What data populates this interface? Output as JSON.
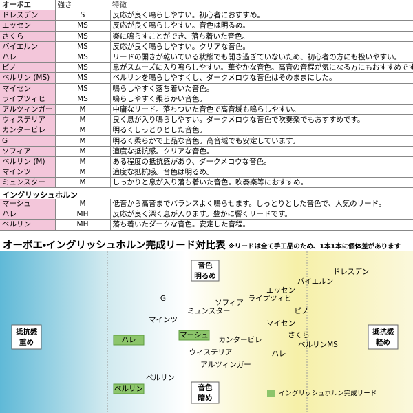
{
  "oboe_table": {
    "header": [
      "オーボエ",
      "強さ",
      "特徴"
    ],
    "rows": [
      [
        "ドレスデン",
        "S",
        "反応が良く鳴らしやすい。初心者におすすめ。"
      ],
      [
        "エッセン",
        "MS",
        "反応が良く鳴らしやすい。音色は明るめ。"
      ],
      [
        "さくら",
        "MS",
        "楽に鳴らすことができ、落ち着いた音色。"
      ],
      [
        "バイエルン",
        "MS",
        "反応が良く鳴らしやすい。クリアな音色。"
      ],
      [
        "ハレ",
        "MS",
        "リードの開きが乾いている状態でも開き過ぎていないため、初心者の方にも扱いやすい。"
      ],
      [
        "ピノ",
        "MS",
        "息がスムーズに入り鳴らしやすい。華やかな音色。高音の音程が気になる方にもおすすめです。"
      ],
      [
        "ベルリン (MS)",
        "MS",
        "ベルリンを鳴らしやすくし、ダークメロウな音色はそのままにした。"
      ],
      [
        "マイセン",
        "MS",
        "鳴らしやすく落ち着いた音色。"
      ],
      [
        "ライプツィヒ",
        "MS",
        "鳴らしやすく柔らかい音色。"
      ],
      [
        "アルツィンガー",
        "M",
        "中庸なリード。落ちついた音色で高音域も鳴らしやすい。"
      ],
      [
        "ウィステリア",
        "M",
        "良く息が入り鳴らしやすい。ダークメロウな音色で吹奏楽でもおすすめです。"
      ],
      [
        "カンタービレ",
        "M",
        "明るくしっとりとした音色。"
      ],
      [
        "G",
        "M",
        "明るく柔らかで上品な音色。高音域でも安定しています。"
      ],
      [
        "ソフィア",
        "M",
        "適度な抵抗感。クリアな音色。"
      ],
      [
        "ベルリン (M)",
        "M",
        "ある程度の抵抗感があり、ダークメロウな音色。"
      ],
      [
        "マインツ",
        "M",
        "適度な抵抗感。音色は明るめ。"
      ],
      [
        "ミュンスター",
        "M",
        "しっかりと息が入り落ち着いた音色。吹奏楽等におすすめ。"
      ]
    ]
  },
  "english_horn_table": {
    "title": "イングリッシュホルン",
    "rows": [
      [
        "マーシュ",
        "M",
        "低音から高音までバランスよく鳴らせます。しっとりとした音色で、人気のリード。"
      ],
      [
        "ハレ",
        "MH",
        "反応が良く深く息が入ります。豊かに響くリードです。"
      ],
      [
        "ベルリン",
        "MH",
        "落ち着いたダークな音色。安定した音程。"
      ]
    ]
  },
  "comparison": {
    "title": "オーボエ・イングリッシュホルン完成リード対比表",
    "note": "※リードは全て手工品のため、1本1本に個体差があります",
    "axis_labels": {
      "top": [
        "音色",
        "明るめ"
      ],
      "bottom": [
        "音色",
        "暗め"
      ],
      "left": [
        "抵抗感",
        "重め"
      ],
      "right": [
        "抵抗感",
        "軽め"
      ]
    },
    "oboe_points": [
      "ドレスデン",
      "バイエルン",
      "エッセン",
      "ライプツィヒ",
      "ソフィア",
      "G",
      "ミュンスター",
      "ピノ",
      "マインツ",
      "マイセン",
      "さくら",
      "カンタービレ",
      "ベルリンMS",
      "ウィステリア",
      "ハレ",
      "アルツィンガー",
      "ベルリン"
    ],
    "english_horn_points": [
      "ハレ",
      "マーシュ",
      "ベルリン"
    ],
    "legend": "イングリッシュホルン完成リード"
  }
}
